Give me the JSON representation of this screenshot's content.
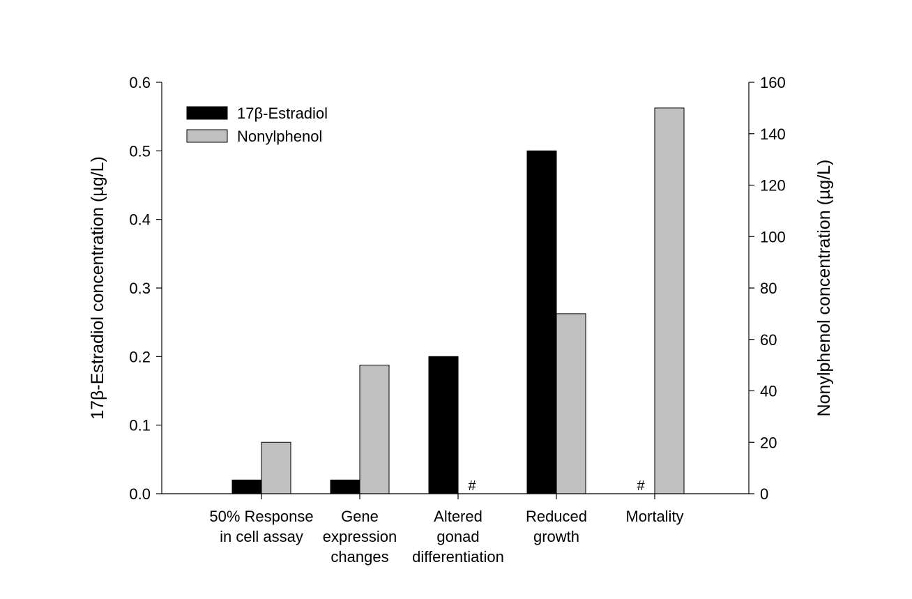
{
  "chart_data": {
    "type": "bar",
    "categories": [
      [
        "50% Response",
        "in cell assay"
      ],
      [
        "Gene",
        "expression",
        "changes"
      ],
      [
        "Altered",
        "gonad",
        "differentiation"
      ],
      [
        "Reduced",
        "growth"
      ],
      [
        "Mortality"
      ]
    ],
    "series": [
      {
        "name": "17β-Estradiol",
        "axis": "left",
        "color": "#000000",
        "values": [
          0.02,
          0.02,
          0.2,
          0.5,
          null
        ]
      },
      {
        "name": "Nonylphenol",
        "axis": "right",
        "color": "#c0c0c0",
        "values": [
          20,
          50,
          null,
          70,
          150
        ]
      }
    ],
    "missing_marker": "#",
    "ylabel_left": "17β-Estradiol concentration (µg/L)",
    "ylabel_right": "Nonylphenol concentration (µg/L)",
    "ylim_left": [
      0,
      0.6
    ],
    "ylim_right": [
      0,
      160
    ],
    "yticks_left": [
      "0.0",
      "0.1",
      "0.2",
      "0.3",
      "0.4",
      "0.5",
      "0.6"
    ],
    "yticks_right": [
      "0",
      "20",
      "40",
      "60",
      "80",
      "100",
      "120",
      "140",
      "160"
    ],
    "legend_position": "top-left",
    "grid": false
  }
}
